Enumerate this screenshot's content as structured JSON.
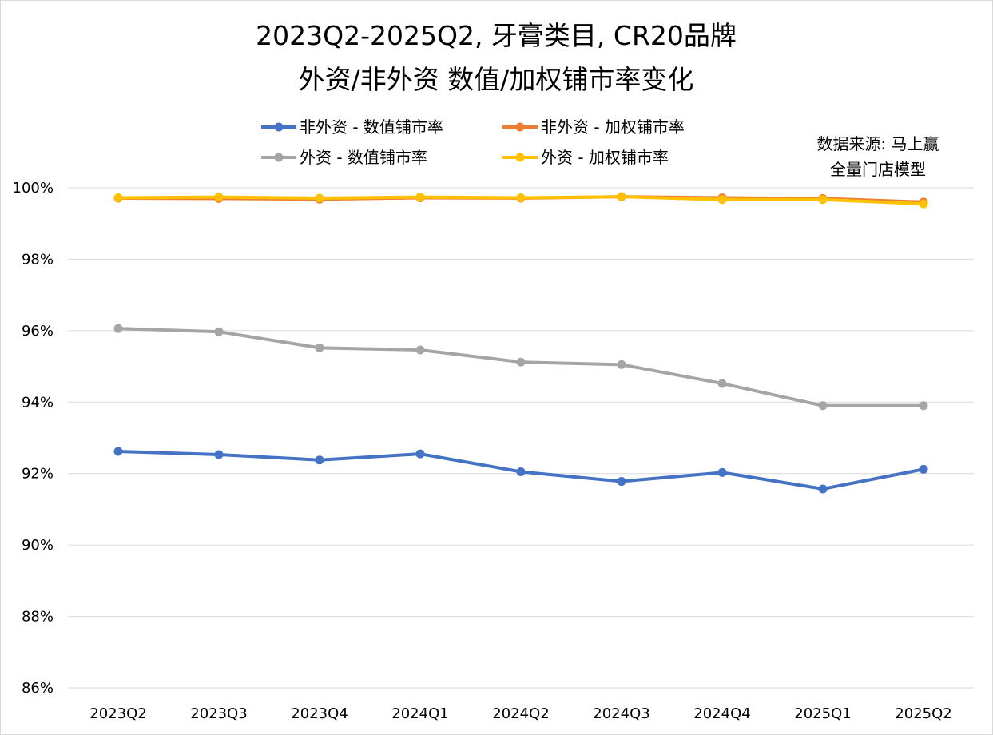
{
  "chart_data": {
    "type": "line",
    "title": [
      "2023Q2-2025Q2, 牙膏类目, CR20品牌",
      "外资/非外资 数值/加权铺市率变化"
    ],
    "source": [
      "数据来源: 马上赢",
      "全量门店模型"
    ],
    "categories": [
      "2023Q2",
      "2023Q3",
      "2023Q4",
      "2024Q1",
      "2024Q2",
      "2024Q3",
      "2024Q4",
      "2025Q1",
      "2025Q2"
    ],
    "y_ticks": [
      "86%",
      "88%",
      "90%",
      "92%",
      "94%",
      "96%",
      "98%",
      "100%"
    ],
    "ylim": [
      86,
      100
    ],
    "grid": true,
    "legend_position": "top",
    "series": [
      {
        "name": "非外资 - 数值铺市率",
        "color": "#4472C4",
        "values": [
          92.62,
          92.53,
          92.38,
          92.55,
          92.05,
          91.78,
          92.03,
          91.57,
          92.12
        ]
      },
      {
        "name": "非外资 - 加权铺市率",
        "color": "#ED7D31",
        "values": [
          99.71,
          99.7,
          99.68,
          99.72,
          99.71,
          99.75,
          99.72,
          99.7,
          99.6
        ]
      },
      {
        "name": "外资 - 数值铺市率",
        "color": "#A5A5A5",
        "values": [
          96.06,
          95.97,
          95.52,
          95.46,
          95.12,
          95.05,
          94.52,
          93.9,
          93.9
        ]
      },
      {
        "name": "外资 - 加权铺市率",
        "color": "#FFC000",
        "values": [
          99.72,
          99.74,
          99.71,
          99.74,
          99.72,
          99.75,
          99.67,
          99.67,
          99.55
        ]
      }
    ]
  }
}
